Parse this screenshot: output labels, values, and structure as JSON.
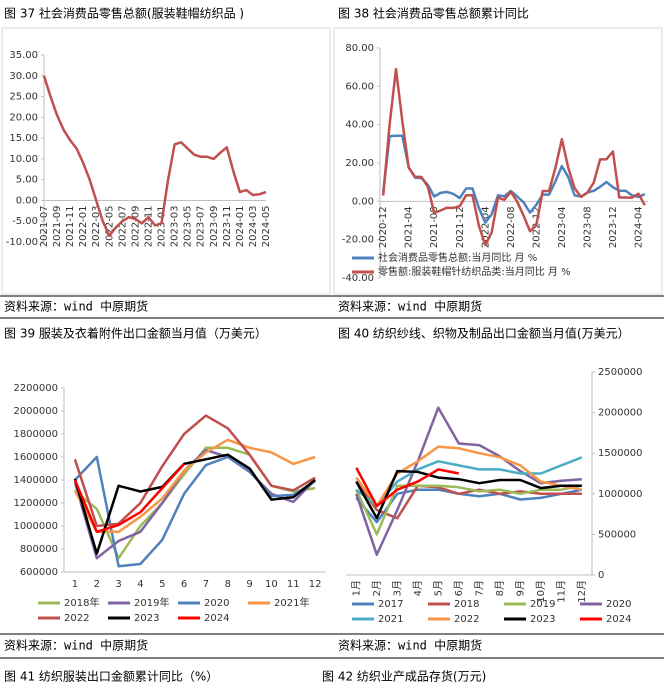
{
  "chart_data": [
    {
      "type": "line",
      "title": "图 37 社会消费品零售总额(服装鞋帽纺织品 )",
      "categories": [
        "2021-07",
        null,
        "2021-09",
        null,
        "2021-11",
        null,
        "2022-01",
        null,
        "2022-03",
        null,
        "2022-05",
        null,
        "2022-07",
        null,
        "2022-09",
        null,
        "2022-11",
        null,
        "2023-01",
        null,
        "2023-03",
        null,
        "2023-05",
        null,
        "2023-07",
        null,
        "2023-09",
        null,
        "2023-11",
        null,
        "2024-01",
        null,
        "2024-03",
        null,
        "2024-05"
      ],
      "values": [
        30,
        25,
        20.5,
        17,
        14.5,
        12.5,
        9,
        5,
        0,
        -5,
        -8.5,
        -6.5,
        -5,
        -4,
        -4.5,
        -5.5,
        -4,
        -6,
        -5.5,
        5,
        13.5,
        14,
        12.5,
        11,
        10.5,
        10.5,
        10,
        11.5,
        12.8,
        7,
        2,
        2.5,
        1.3,
        1.5,
        2
      ],
      "color": "#c0504d",
      "ylim": [
        -10,
        35
      ],
      "yticks": [
        {
          "value": -10,
          "label": "-10.00"
        },
        {
          "value": -5,
          "label": "-5.00"
        },
        {
          "value": 0,
          "label": "0.00"
        },
        {
          "value": 5,
          "label": "5.00"
        },
        {
          "value": 10,
          "label": "10.00"
        },
        {
          "value": 15,
          "label": "15.00"
        },
        {
          "value": 20,
          "label": "20.00"
        },
        {
          "value": 25,
          "label": "25.00"
        },
        {
          "value": 30,
          "label": "30.00"
        },
        {
          "value": 35,
          "label": "35.00"
        }
      ],
      "grid": false
    },
    {
      "type": "line",
      "title": "图 38 社会消费品零售总额累计同比",
      "categories": [
        "2020-12",
        null,
        null,
        null,
        "2021-04",
        null,
        null,
        null,
        "2021-08",
        null,
        null,
        null,
        "2021-12",
        null,
        null,
        null,
        "2022-04",
        null,
        null,
        null,
        "2022-08",
        null,
        null,
        null,
        "2022-12",
        null,
        null,
        null,
        "2023-04",
        null,
        null,
        null,
        "2023-08",
        null,
        null,
        null,
        "2023-12",
        null,
        null,
        null,
        "2024-04",
        null
      ],
      "series": [
        {
          "name": "社会消费品零售总额:当月同比 月 %",
          "color": "#4f81bd",
          "values": [
            4.6,
            34,
            34.2,
            34.2,
            17.7,
            12.4,
            12.1,
            8.5,
            2.5,
            4.4,
            4.9,
            3.9,
            1.7,
            6.7,
            6.7,
            -3.5,
            -11.1,
            -6.7,
            3.1,
            2.7,
            5.4,
            2.5,
            -0.5,
            -5.9,
            -1.8,
            3.5,
            3.5,
            10.6,
            18.4,
            12.7,
            3.1,
            2.5,
            4.6,
            5.5,
            7.6,
            10.1,
            7.4,
            5.5,
            5.5,
            3.1,
            2.3,
            3.7
          ]
        },
        {
          "name": "零售额:服装鞋帽针纺织品类:当月同比 月 %",
          "color": "#c0504d",
          "values": [
            3,
            40,
            69,
            42,
            17.6,
            12.8,
            12.7,
            7.5,
            -6,
            -4.8,
            -3.3,
            -3.4,
            -2.5,
            3.2,
            3.2,
            -12.7,
            -22.8,
            -16.2,
            1.9,
            0.8,
            5,
            -0.2,
            -7.5,
            -15.6,
            -12.5,
            5.4,
            5.4,
            17.7,
            32.4,
            17.6,
            6.9,
            2.3,
            4.5,
            9.9,
            21.9,
            22,
            26,
            2,
            2,
            1.9,
            4,
            -2
          ]
        }
      ],
      "ylim": [
        -40,
        80
      ],
      "yticks": [
        {
          "value": -40,
          "label": "-40.00"
        },
        {
          "value": -20,
          "label": "-20.00"
        },
        {
          "value": 0,
          "label": "0.00"
        },
        {
          "value": 20,
          "label": "20.00"
        },
        {
          "value": 40,
          "label": "40.00"
        },
        {
          "value": 60,
          "label": "60.00"
        },
        {
          "value": 80,
          "label": "80.00"
        }
      ],
      "grid": false,
      "legend": "lower left"
    },
    {
      "type": "line",
      "title": "图 39 服装及衣着附件出口金额当月值（万美元）",
      "categories": [
        "1",
        "2",
        "3",
        "4",
        "5",
        "6",
        "7",
        "8",
        "9",
        "10",
        "11",
        "12"
      ],
      "series": [
        {
          "name": "2018年",
          "color": "#9bbb59",
          "values": [
            1300000,
            1150000,
            720000,
            1000000,
            1200000,
            1450000,
            1680000,
            1680000,
            1620000,
            1350000,
            1300000,
            1330000
          ]
        },
        {
          "name": "2019年",
          "color": "#8064a2",
          "values": [
            1380000,
            720000,
            870000,
            950000,
            1200000,
            1480000,
            1660000,
            1600000,
            1470000,
            1280000,
            1210000,
            1400000
          ]
        },
        {
          "name": "2020",
          "color": "#4f81bd",
          "values": [
            1400000,
            1600000,
            650000,
            670000,
            880000,
            1280000,
            1530000,
            1600000,
            1480000,
            1260000,
            1270000,
            1390000
          ]
        },
        {
          "name": "2021年",
          "color": "#f79646",
          "values": [
            1310000,
            950000,
            950000,
            1080000,
            1240000,
            1480000,
            1640000,
            1750000,
            1680000,
            1640000,
            1540000,
            1600000
          ]
        },
        {
          "name": "2022",
          "color": "#c0504d",
          "values": [
            1580000,
            1000000,
            1020000,
            1200000,
            1520000,
            1800000,
            1960000,
            1850000,
            1620000,
            1350000,
            1310000,
            1420000
          ]
        },
        {
          "name": "2023",
          "color": "#000000",
          "values": [
            1410000,
            760000,
            1350000,
            1300000,
            1340000,
            1540000,
            1580000,
            1620000,
            1500000,
            1230000,
            1250000,
            1400000
          ]
        },
        {
          "name": "2024",
          "color": "#ff0000",
          "values": [
            1400000,
            950000,
            1010000,
            1120000,
            1330000,
            1540000,
            null,
            null,
            null,
            null,
            null,
            null
          ]
        }
      ],
      "ylim": [
        600000,
        2200000
      ],
      "yticks": [
        600000,
        800000,
        1000000,
        1200000,
        1400000,
        1600000,
        1800000,
        2000000,
        2200000
      ],
      "grid": false,
      "legend": "bottom"
    },
    {
      "type": "line",
      "title": "图 40 纺织纱线、织物及制品出口金额当月值(万美元）",
      "categories": [
        "1月",
        "2月",
        "3月",
        "4月",
        "5月",
        "6月",
        "7月",
        "8月",
        "9月",
        "10月",
        "11月",
        "12月"
      ],
      "series": [
        {
          "name": "2017",
          "color": "#4f81bd",
          "values": [
            950000,
            650000,
            1000000,
            1050000,
            1050000,
            1000000,
            970000,
            1000000,
            930000,
            950000,
            1000000,
            1050000
          ]
        },
        {
          "name": "2018",
          "color": "#c0504d",
          "values": [
            1150000,
            800000,
            700000,
            1100000,
            1080000,
            1000000,
            1050000,
            1000000,
            1030000,
            1000000,
            1000000,
            1000000
          ]
        },
        {
          "name": "2019",
          "color": "#9bbb59",
          "values": [
            1050000,
            500000,
            1100000,
            1100000,
            1100000,
            1080000,
            1030000,
            1050000,
            1000000,
            1050000,
            1050000,
            1100000
          ]
        },
        {
          "name": "2020",
          "color": "#8064a2",
          "values": [
            1000000,
            250000,
            800000,
            1400000,
            2060000,
            1620000,
            1600000,
            1460000,
            1280000,
            1130000,
            1160000,
            1180000
          ]
        },
        {
          "name": "2021",
          "color": "#4bacc6",
          "values": [
            1050000,
            850000,
            1150000,
            1300000,
            1400000,
            1350000,
            1300000,
            1300000,
            1250000,
            1250000,
            1350000,
            1450000
          ]
        },
        {
          "name": "2022",
          "color": "#f79646",
          "values": [
            1200000,
            850000,
            1250000,
            1400000,
            1580000,
            1560000,
            1500000,
            1450000,
            1350000,
            1150000,
            1100000,
            1050000
          ]
        },
        {
          "name": "2023",
          "color": "#000000",
          "values": [
            1150000,
            700000,
            1280000,
            1270000,
            1200000,
            1180000,
            1130000,
            1170000,
            1170000,
            1070000,
            1100000,
            1100000
          ]
        },
        {
          "name": "2024",
          "color": "#ff0000",
          "values": [
            1320000,
            850000,
            1050000,
            1150000,
            1300000,
            1250000,
            null,
            null,
            null,
            null,
            null,
            null
          ]
        }
      ],
      "ylim": [
        0,
        2500000
      ],
      "yticks": [
        0,
        500000,
        1000000,
        1500000,
        2000000,
        2500000
      ],
      "grid": false,
      "legend": "bottom",
      "yaxis_side": "right"
    }
  ],
  "sources": [
    "资料来源：wind 中原期货",
    "资料来源：wind 中原期货",
    "资料来源：wind 中原期货",
    "资料来源：wind 中原期货"
  ],
  "next_captions": [
    "图 41 纺织服装出口金额累计同比（%）",
    "图 42 纺织业产成品存货(万元)"
  ]
}
